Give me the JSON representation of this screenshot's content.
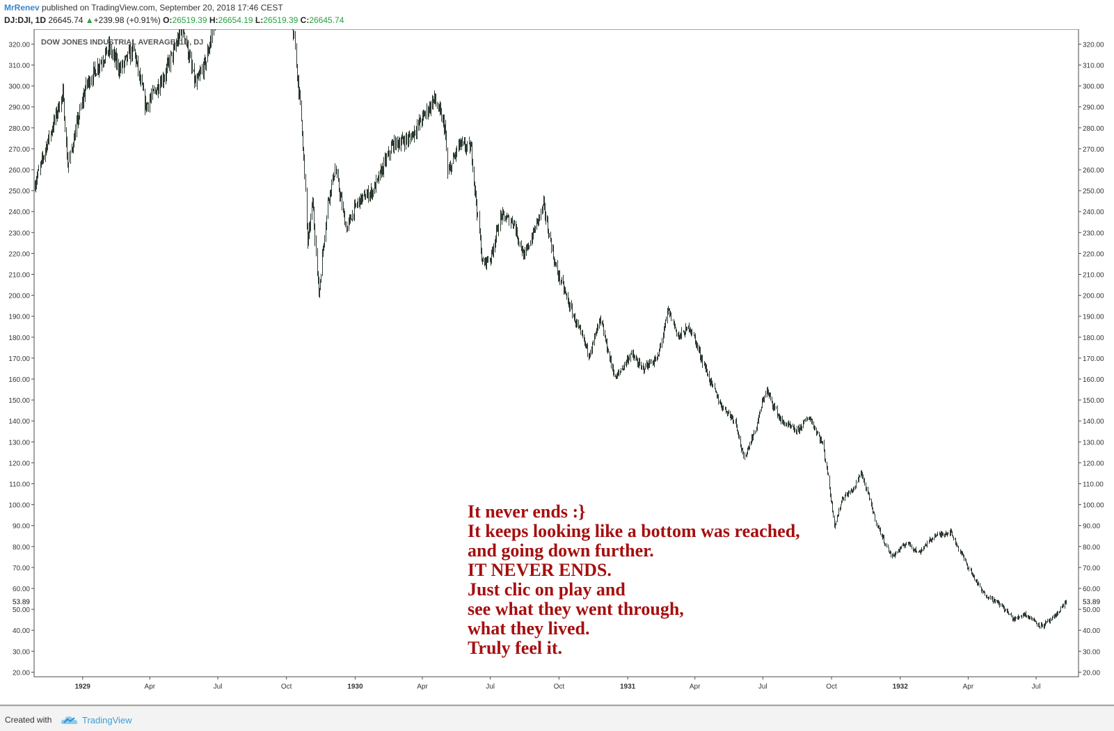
{
  "header": {
    "author": "MrRenev",
    "published": "published on TradingView.com, September 20, 2018 17:46 CEST",
    "symbol": "DJ:DJI, 1D",
    "last": "26645.74",
    "change": "+239.98 (+0.91%)",
    "open_label": "O:",
    "open": "26519.39",
    "high_label": "H:",
    "high": "26654.19",
    "low_label": "L:",
    "low": "26519.39",
    "close_label": "C:",
    "close": "26645.74"
  },
  "colors": {
    "up": "#25a140",
    "author": "#3a86c8",
    "annotation": "#a50f0f",
    "brand": "#3a9ed8",
    "candles": "#2c3a30"
  },
  "icons": {
    "change_arrow": "triangle-up-icon",
    "logo": "tradingview-cloud-icon"
  },
  "chart_data": {
    "type": "candlestick",
    "title": "DOW JONES INDUSTRIAL AVERAGE, 1D, DJ",
    "ylim": [
      20,
      330
    ],
    "yticks": [
      "320.00",
      "310.00",
      "300.00",
      "290.00",
      "280.00",
      "270.00",
      "260.00",
      "250.00",
      "240.00",
      "230.00",
      "220.00",
      "210.00",
      "200.00",
      "190.00",
      "180.00",
      "170.00",
      "160.00",
      "150.00",
      "140.00",
      "130.00",
      "120.00",
      "110.00",
      "100.00",
      "90.00",
      "80.00",
      "70.00",
      "60.00",
      "50.00",
      "40.00",
      "30.00",
      "20.00"
    ],
    "current_value_label": "53.89",
    "current_value": 53.89,
    "x_start": "1928-10-28",
    "x_end": "1932-08-10",
    "xticks": [
      {
        "label": "1929",
        "date": "1929-01-01"
      },
      {
        "label": "Apr",
        "date": "1929-04-01"
      },
      {
        "label": "Jul",
        "date": "1929-07-01"
      },
      {
        "label": "Oct",
        "date": "1929-10-01"
      },
      {
        "label": "1930",
        "date": "1930-01-01"
      },
      {
        "label": "Apr",
        "date": "1930-04-01"
      },
      {
        "label": "Jul",
        "date": "1930-07-01"
      },
      {
        "label": "Oct",
        "date": "1930-10-01"
      },
      {
        "label": "1931",
        "date": "1931-01-01"
      },
      {
        "label": "Apr",
        "date": "1931-04-01"
      },
      {
        "label": "Jul",
        "date": "1931-07-01"
      },
      {
        "label": "Oct",
        "date": "1931-10-01"
      },
      {
        "label": "1932",
        "date": "1932-01-01"
      },
      {
        "label": "Apr",
        "date": "1932-04-01"
      },
      {
        "label": "Jul",
        "date": "1932-07-01"
      }
    ],
    "price_path": [
      {
        "date": "1928-10-28",
        "value": 252
      },
      {
        "date": "1928-11-12",
        "value": 270
      },
      {
        "date": "1928-12-05",
        "value": 296
      },
      {
        "date": "1928-12-12",
        "value": 262
      },
      {
        "date": "1929-01-05",
        "value": 300
      },
      {
        "date": "1929-02-05",
        "value": 318
      },
      {
        "date": "1929-02-20",
        "value": 308
      },
      {
        "date": "1929-03-10",
        "value": 318
      },
      {
        "date": "1929-03-26",
        "value": 290
      },
      {
        "date": "1929-04-20",
        "value": 305
      },
      {
        "date": "1929-05-15",
        "value": 328
      },
      {
        "date": "1929-06-01",
        "value": 300
      },
      {
        "date": "1929-06-15",
        "value": 312
      },
      {
        "date": "1929-07-05",
        "value": 345
      },
      {
        "date": "1929-09-25",
        "value": 345
      },
      {
        "date": "1929-10-10",
        "value": 325
      },
      {
        "date": "1929-10-22",
        "value": 280
      },
      {
        "date": "1929-10-29",
        "value": 225
      },
      {
        "date": "1929-11-05",
        "value": 245
      },
      {
        "date": "1929-11-13",
        "value": 200
      },
      {
        "date": "1929-11-25",
        "value": 245
      },
      {
        "date": "1929-12-05",
        "value": 260
      },
      {
        "date": "1929-12-20",
        "value": 232
      },
      {
        "date": "1930-01-05",
        "value": 245
      },
      {
        "date": "1930-01-25",
        "value": 250
      },
      {
        "date": "1930-02-20",
        "value": 272
      },
      {
        "date": "1930-03-15",
        "value": 275
      },
      {
        "date": "1930-04-17",
        "value": 294
      },
      {
        "date": "1930-05-01",
        "value": 280
      },
      {
        "date": "1930-05-05",
        "value": 258
      },
      {
        "date": "1930-05-20",
        "value": 272
      },
      {
        "date": "1930-06-05",
        "value": 270
      },
      {
        "date": "1930-06-20",
        "value": 215
      },
      {
        "date": "1930-07-01",
        "value": 218
      },
      {
        "date": "1930-07-15",
        "value": 238
      },
      {
        "date": "1930-08-01",
        "value": 235
      },
      {
        "date": "1930-08-15",
        "value": 218
      },
      {
        "date": "1930-09-10",
        "value": 243
      },
      {
        "date": "1930-09-25",
        "value": 215
      },
      {
        "date": "1930-10-20",
        "value": 190
      },
      {
        "date": "1930-11-10",
        "value": 172
      },
      {
        "date": "1930-11-25",
        "value": 188
      },
      {
        "date": "1930-12-15",
        "value": 160
      },
      {
        "date": "1931-01-05",
        "value": 172
      },
      {
        "date": "1931-01-20",
        "value": 165
      },
      {
        "date": "1931-02-10",
        "value": 170
      },
      {
        "date": "1931-02-24",
        "value": 193
      },
      {
        "date": "1931-03-10",
        "value": 180
      },
      {
        "date": "1931-03-25",
        "value": 185
      },
      {
        "date": "1931-04-20",
        "value": 160
      },
      {
        "date": "1931-05-05",
        "value": 148
      },
      {
        "date": "1931-05-25",
        "value": 140
      },
      {
        "date": "1931-06-05",
        "value": 122
      },
      {
        "date": "1931-06-20",
        "value": 135
      },
      {
        "date": "1931-07-05",
        "value": 155
      },
      {
        "date": "1931-07-25",
        "value": 140
      },
      {
        "date": "1931-08-15",
        "value": 135
      },
      {
        "date": "1931-09-01",
        "value": 142
      },
      {
        "date": "1931-09-20",
        "value": 128
      },
      {
        "date": "1931-10-05",
        "value": 90
      },
      {
        "date": "1931-10-15",
        "value": 103
      },
      {
        "date": "1931-11-01",
        "value": 108
      },
      {
        "date": "1931-11-09",
        "value": 116
      },
      {
        "date": "1931-12-01",
        "value": 90
      },
      {
        "date": "1931-12-20",
        "value": 75
      },
      {
        "date": "1932-01-10",
        "value": 82
      },
      {
        "date": "1932-01-25",
        "value": 77
      },
      {
        "date": "1932-02-15",
        "value": 85
      },
      {
        "date": "1932-03-08",
        "value": 87
      },
      {
        "date": "1932-04-01",
        "value": 70
      },
      {
        "date": "1932-04-20",
        "value": 58
      },
      {
        "date": "1932-05-15",
        "value": 52
      },
      {
        "date": "1932-06-01",
        "value": 45
      },
      {
        "date": "1932-06-15",
        "value": 48
      },
      {
        "date": "1932-07-08",
        "value": 42
      },
      {
        "date": "1932-07-25",
        "value": 46
      },
      {
        "date": "1932-08-10",
        "value": 54
      }
    ]
  },
  "annotation": [
    "It never ends :}",
    "It keeps looking like a bottom was reached,",
    "and going down further.",
    "IT NEVER ENDS.",
    "Just clic on play and",
    "see what they went through,",
    "what they lived.",
    "Truly feel it."
  ],
  "footer": {
    "created": "Created with",
    "brand": "TradingView"
  }
}
